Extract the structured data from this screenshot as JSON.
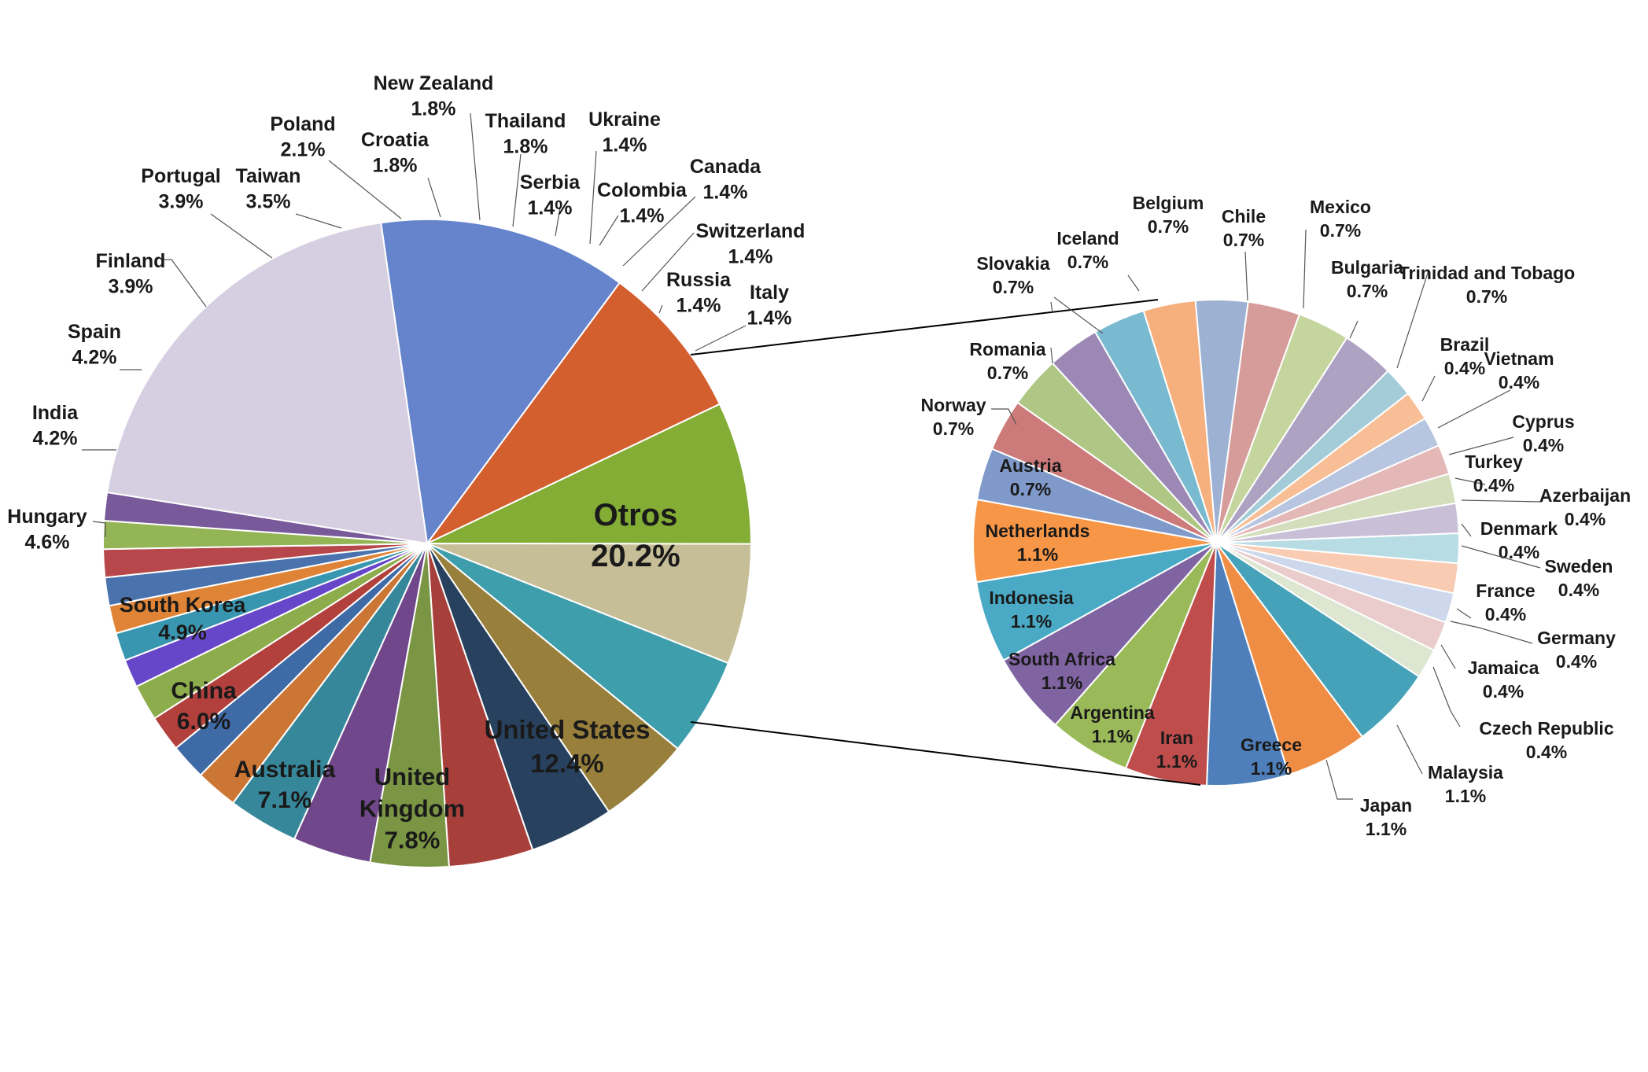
{
  "chart_data": [
    {
      "type": "pie",
      "title": "",
      "slices": [
        {
          "label": "United States",
          "value": 12.4,
          "pct": "12.4%",
          "color": "#6584CC"
        },
        {
          "label": "United Kingdom",
          "value": 7.8,
          "pct": "7.8%",
          "color": "#D35E2E"
        },
        {
          "label": "Australia",
          "value": 7.1,
          "pct": "7.1%",
          "color": "#84AD35"
        },
        {
          "label": "China",
          "value": 6.0,
          "pct": "6.0%",
          "color": "#C6BE96"
        },
        {
          "label": "South Korea",
          "value": 4.9,
          "pct": "4.9%",
          "color": "#3F9EAC"
        },
        {
          "label": "Hungary",
          "value": 4.6,
          "pct": "4.6%",
          "color": "#987F3B"
        },
        {
          "label": "India",
          "value": 4.2,
          "pct": "4.2%",
          "color": "#28415F"
        },
        {
          "label": "Spain",
          "value": 4.2,
          "pct": "4.2%",
          "color": "#A73F3B"
        },
        {
          "label": "Finland",
          "value": 3.9,
          "pct": "3.9%",
          "color": "#7A9543"
        },
        {
          "label": "Portugal",
          "value": 3.9,
          "pct": "3.9%",
          "color": "#71478B"
        },
        {
          "label": "Taiwan",
          "value": 3.5,
          "pct": "3.5%",
          "color": "#37879B"
        },
        {
          "label": "Poland",
          "value": 2.1,
          "pct": "2.1%",
          "color": "#CB7634"
        },
        {
          "label": "Croatia",
          "value": 1.8,
          "pct": "1.8%",
          "color": "#3E6AA6"
        },
        {
          "label": "New Zealand",
          "value": 1.8,
          "pct": "1.8%",
          "color": "#B2403C"
        },
        {
          "label": "Thailand",
          "value": 1.8,
          "pct": "1.8%",
          "color": "#8DAD4C"
        },
        {
          "label": "Serbia",
          "value": 1.4,
          "pct": "1.4%",
          "color": "#6646C9"
        },
        {
          "label": "Ukraine",
          "value": 1.4,
          "pct": "1.4%",
          "color": "#3996B0"
        },
        {
          "label": "Colombia",
          "value": 1.4,
          "pct": "1.4%",
          "color": "#DF8436"
        },
        {
          "label": "Canada",
          "value": 1.4,
          "pct": "1.4%",
          "color": "#4A73AE"
        },
        {
          "label": "Switzerland",
          "value": 1.4,
          "pct": "1.4%",
          "color": "#B7474A"
        },
        {
          "label": "Russia",
          "value": 1.4,
          "pct": "1.4%",
          "color": "#94B556"
        },
        {
          "label": "Italy",
          "value": 1.4,
          "pct": "1.4%",
          "color": "#78599A"
        },
        {
          "label": "Otros",
          "value": 20.2,
          "pct": "20.2%",
          "color": "#D5CFE1"
        }
      ]
    },
    {
      "type": "pie",
      "title": "",
      "slices": [
        {
          "label": "Chile",
          "value": 0.7,
          "pct": "0.7%",
          "color": "#9DB1D3"
        },
        {
          "label": "Mexico",
          "value": 0.7,
          "pct": "0.7%",
          "color": "#D69C9A"
        },
        {
          "label": "Bulgaria",
          "value": 0.7,
          "pct": "0.7%",
          "color": "#C4D59D"
        },
        {
          "label": "Trinidad and Tobago",
          "value": 0.7,
          "pct": "0.7%",
          "color": "#AEA2C3"
        },
        {
          "label": "Brazil",
          "value": 0.4,
          "pct": "0.4%",
          "color": "#A3CCD8"
        },
        {
          "label": "Vietnam",
          "value": 0.4,
          "pct": "0.4%",
          "color": "#F8BE95"
        },
        {
          "label": "Cyprus",
          "value": 0.4,
          "pct": "0.4%",
          "color": "#B7C5E1"
        },
        {
          "label": "Turkey",
          "value": 0.4,
          "pct": "0.4%",
          "color": "#E4B8B6"
        },
        {
          "label": "Azerbaijan",
          "value": 0.4,
          "pct": "0.4%",
          "color": "#D4DEBC"
        },
        {
          "label": "Denmark",
          "value": 0.4,
          "pct": "0.4%",
          "color": "#C9C0D8"
        },
        {
          "label": "Sweden",
          "value": 0.4,
          "pct": "0.4%",
          "color": "#B8DCE3"
        },
        {
          "label": "France",
          "value": 0.4,
          "pct": "0.4%",
          "color": "#F9CBB3"
        },
        {
          "label": "Germany",
          "value": 0.4,
          "pct": "0.4%",
          "color": "#CDD8EC"
        },
        {
          "label": "Jamaica",
          "value": 0.4,
          "pct": "0.4%",
          "color": "#EACCCC"
        },
        {
          "label": "Czech Republic",
          "value": 0.4,
          "pct": "0.4%",
          "color": "#DDE6D0"
        },
        {
          "label": "Malaysia",
          "value": 1.1,
          "pct": "1.1%",
          "color": "#45A2B8"
        },
        {
          "label": "Japan",
          "value": 1.1,
          "pct": "1.1%",
          "color": "#EE8D43"
        },
        {
          "label": "Greece",
          "value": 1.1,
          "pct": "1.1%",
          "color": "#4F7FBB"
        },
        {
          "label": "Iran",
          "value": 1.1,
          "pct": "1.1%",
          "color": "#BF4D4C"
        },
        {
          "label": "Argentina",
          "value": 1.1,
          "pct": "1.1%",
          "color": "#9ABA59"
        },
        {
          "label": "South Africa",
          "value": 1.1,
          "pct": "1.1%",
          "color": "#8064A2"
        },
        {
          "label": "Indonesia",
          "value": 1.1,
          "pct": "1.1%",
          "color": "#4AAAC6"
        },
        {
          "label": "Netherlands",
          "value": 1.1,
          "pct": "1.1%",
          "color": "#F79646"
        },
        {
          "label": "Austria",
          "value": 0.7,
          "pct": "0.7%",
          "color": "#7F9ACA"
        },
        {
          "label": "Norway",
          "value": 0.7,
          "pct": "0.7%",
          "color": "#CD7B7A"
        },
        {
          "label": "Romania",
          "value": 0.7,
          "pct": "0.7%",
          "color": "#AFC784"
        },
        {
          "label": "Slovakia",
          "value": 0.7,
          "pct": "0.7%",
          "color": "#9C88B5"
        },
        {
          "label": "Iceland",
          "value": 0.7,
          "pct": "0.7%",
          "color": "#7ABAD0"
        },
        {
          "label": "Belgium",
          "value": 0.7,
          "pct": "0.7%",
          "color": "#F6B07E"
        }
      ]
    }
  ]
}
